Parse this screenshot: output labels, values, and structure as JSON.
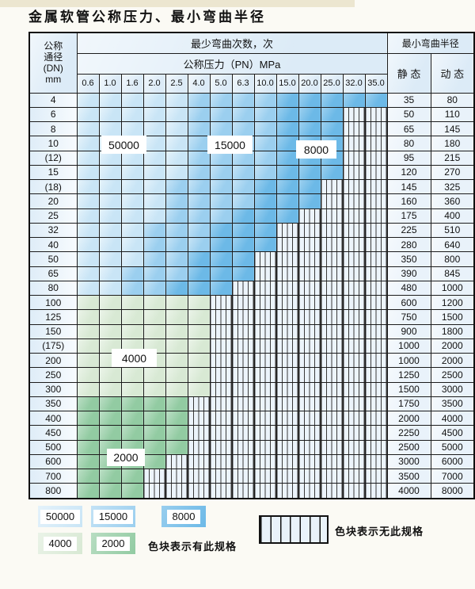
{
  "title": "金属软管公称压力、最小弯曲半径",
  "colors": {
    "zone_50000": "#c9e5f6",
    "zone_15000": "#9bcfef",
    "zone_8000": "#6cb9e7",
    "zone_4000": "#d8e9d4",
    "zone_2000": "#92cba2",
    "hatch_bg": "#ecf4fb",
    "header_bg": "#dcebf7"
  },
  "table": {
    "header": {
      "dn_lines": [
        "公称",
        "通径",
        "(DN)",
        "mm"
      ],
      "bend_cycles": "最少弯曲次数，次",
      "pressure": "公称压力（PN）MPa",
      "min_radius": "最小弯曲半径",
      "static": "静 态",
      "dynamic": "动 态",
      "pressures": [
        "0.6",
        "1.0",
        "1.6",
        "2.0",
        "2.5",
        "4.0",
        "5.0",
        "6.3",
        "10.0",
        "15.0",
        "20.0",
        "25.0",
        "32.0",
        "35.0"
      ]
    },
    "rows": [
      {
        "dn": "4",
        "static": "35",
        "dynamic": "80",
        "cells": [
          "50000",
          "50000",
          "50000",
          "50000",
          "50000",
          "15000",
          "15000",
          "15000",
          "15000",
          "8000",
          "8000",
          "8000",
          "8000",
          "8000"
        ]
      },
      {
        "dn": "6",
        "static": "50",
        "dynamic": "110",
        "cells": [
          "50000",
          "50000",
          "50000",
          "50000",
          "50000",
          "15000",
          "15000",
          "15000",
          "15000",
          "8000",
          "8000",
          "8000",
          "none",
          "none"
        ]
      },
      {
        "dn": "8",
        "static": "65",
        "dynamic": "145",
        "cells": [
          "50000",
          "50000",
          "50000",
          "50000",
          "50000",
          "15000",
          "15000",
          "15000",
          "15000",
          "8000",
          "8000",
          "8000",
          "none",
          "none"
        ]
      },
      {
        "dn": "10",
        "static": "80",
        "dynamic": "180",
        "cells": [
          "50000",
          "50000",
          "50000",
          "50000",
          "50000",
          "15000",
          "15000",
          "15000",
          "15000",
          "8000",
          "8000",
          "8000",
          "none",
          "none"
        ]
      },
      {
        "dn": "(12)",
        "static": "95",
        "dynamic": "215",
        "cells": [
          "50000",
          "50000",
          "50000",
          "50000",
          "50000",
          "15000",
          "15000",
          "15000",
          "15000",
          "8000",
          "8000",
          "8000",
          "none",
          "none"
        ]
      },
      {
        "dn": "15",
        "static": "120",
        "dynamic": "270",
        "cells": [
          "50000",
          "50000",
          "50000",
          "50000",
          "50000",
          "15000",
          "15000",
          "15000",
          "15000",
          "8000",
          "8000",
          "8000",
          "none",
          "none"
        ]
      },
      {
        "dn": "(18)",
        "static": "145",
        "dynamic": "325",
        "cells": [
          "50000",
          "50000",
          "50000",
          "50000",
          "15000",
          "15000",
          "15000",
          "15000",
          "8000",
          "8000",
          "8000",
          "none",
          "none",
          "none"
        ]
      },
      {
        "dn": "20",
        "static": "160",
        "dynamic": "360",
        "cells": [
          "50000",
          "50000",
          "50000",
          "50000",
          "15000",
          "15000",
          "15000",
          "15000",
          "8000",
          "8000",
          "8000",
          "none",
          "none",
          "none"
        ]
      },
      {
        "dn": "25",
        "static": "175",
        "dynamic": "400",
        "cells": [
          "50000",
          "50000",
          "50000",
          "50000",
          "15000",
          "15000",
          "15000",
          "8000",
          "8000",
          "8000",
          "none",
          "none",
          "none",
          "none"
        ]
      },
      {
        "dn": "32",
        "static": "225",
        "dynamic": "510",
        "cells": [
          "50000",
          "50000",
          "50000",
          "15000",
          "15000",
          "15000",
          "8000",
          "8000",
          "8000",
          "none",
          "none",
          "none",
          "none",
          "none"
        ]
      },
      {
        "dn": "40",
        "static": "280",
        "dynamic": "640",
        "cells": [
          "50000",
          "50000",
          "50000",
          "15000",
          "15000",
          "15000",
          "8000",
          "8000",
          "8000",
          "none",
          "none",
          "none",
          "none",
          "none"
        ]
      },
      {
        "dn": "50",
        "static": "350",
        "dynamic": "800",
        "cells": [
          "50000",
          "50000",
          "50000",
          "15000",
          "15000",
          "8000",
          "8000",
          "8000",
          "none",
          "none",
          "none",
          "none",
          "none",
          "none"
        ]
      },
      {
        "dn": "65",
        "static": "390",
        "dynamic": "845",
        "cells": [
          "50000",
          "50000",
          "15000",
          "15000",
          "15000",
          "8000",
          "8000",
          "8000",
          "none",
          "none",
          "none",
          "none",
          "none",
          "none"
        ]
      },
      {
        "dn": "80",
        "static": "480",
        "dynamic": "1000",
        "cells": [
          "50000",
          "50000",
          "15000",
          "15000",
          "8000",
          "8000",
          "8000",
          "none",
          "none",
          "none",
          "none",
          "none",
          "none",
          "none"
        ]
      },
      {
        "dn": "100",
        "static": "600",
        "dynamic": "1200",
        "cells": [
          "4000",
          "4000",
          "4000",
          "4000",
          "4000",
          "4000",
          "none",
          "none",
          "none",
          "none",
          "none",
          "none",
          "none",
          "none"
        ]
      },
      {
        "dn": "125",
        "static": "750",
        "dynamic": "1500",
        "cells": [
          "4000",
          "4000",
          "4000",
          "4000",
          "4000",
          "4000",
          "none",
          "none",
          "none",
          "none",
          "none",
          "none",
          "none",
          "none"
        ]
      },
      {
        "dn": "150",
        "static": "900",
        "dynamic": "1800",
        "cells": [
          "4000",
          "4000",
          "4000",
          "4000",
          "4000",
          "4000",
          "none",
          "none",
          "none",
          "none",
          "none",
          "none",
          "none",
          "none"
        ]
      },
      {
        "dn": "(175)",
        "static": "1000",
        "dynamic": "2000",
        "cells": [
          "4000",
          "4000",
          "4000",
          "4000",
          "4000",
          "4000",
          "none",
          "none",
          "none",
          "none",
          "none",
          "none",
          "none",
          "none"
        ]
      },
      {
        "dn": "200",
        "static": "1000",
        "dynamic": "2000",
        "cells": [
          "4000",
          "4000",
          "4000",
          "4000",
          "4000",
          "4000",
          "none",
          "none",
          "none",
          "none",
          "none",
          "none",
          "none",
          "none"
        ]
      },
      {
        "dn": "250",
        "static": "1250",
        "dynamic": "2500",
        "cells": [
          "4000",
          "4000",
          "4000",
          "4000",
          "4000",
          "4000",
          "none",
          "none",
          "none",
          "none",
          "none",
          "none",
          "none",
          "none"
        ]
      },
      {
        "dn": "300",
        "static": "1500",
        "dynamic": "3000",
        "cells": [
          "4000",
          "4000",
          "4000",
          "4000",
          "4000",
          "4000",
          "none",
          "none",
          "none",
          "none",
          "none",
          "none",
          "none",
          "none"
        ]
      },
      {
        "dn": "350",
        "static": "1750",
        "dynamic": "3500",
        "cells": [
          "2000",
          "2000",
          "2000",
          "2000",
          "2000",
          "none",
          "none",
          "none",
          "none",
          "none",
          "none",
          "none",
          "none",
          "none"
        ]
      },
      {
        "dn": "400",
        "static": "2000",
        "dynamic": "4000",
        "cells": [
          "2000",
          "2000",
          "2000",
          "2000",
          "2000",
          "none",
          "none",
          "none",
          "none",
          "none",
          "none",
          "none",
          "none",
          "none"
        ]
      },
      {
        "dn": "450",
        "static": "2250",
        "dynamic": "4500",
        "cells": [
          "2000",
          "2000",
          "2000",
          "2000",
          "2000",
          "none",
          "none",
          "none",
          "none",
          "none",
          "none",
          "none",
          "none",
          "none"
        ]
      },
      {
        "dn": "500",
        "static": "2500",
        "dynamic": "5000",
        "cells": [
          "2000",
          "2000",
          "2000",
          "2000",
          "2000",
          "none",
          "none",
          "none",
          "none",
          "none",
          "none",
          "none",
          "none",
          "none"
        ]
      },
      {
        "dn": "600",
        "static": "3000",
        "dynamic": "6000",
        "cells": [
          "2000",
          "2000",
          "2000",
          "2000",
          "none",
          "none",
          "none",
          "none",
          "none",
          "none",
          "none",
          "none",
          "none",
          "none"
        ]
      },
      {
        "dn": "700",
        "static": "3500",
        "dynamic": "7000",
        "cells": [
          "2000",
          "2000",
          "2000",
          "none",
          "none",
          "none",
          "none",
          "none",
          "none",
          "none",
          "none",
          "none",
          "none",
          "none"
        ]
      },
      {
        "dn": "800",
        "static": "4000",
        "dynamic": "8000",
        "cells": [
          "2000",
          "2000",
          "2000",
          "none",
          "none",
          "none",
          "none",
          "none",
          "none",
          "none",
          "none",
          "none",
          "none",
          "none"
        ]
      }
    ]
  },
  "overlays": {
    "o50000": "50000",
    "o15000": "15000",
    "o8000": "8000",
    "o4000": "4000",
    "o2000": "2000"
  },
  "legend": {
    "swatches": [
      "50000",
      "15000",
      "8000",
      "4000",
      "2000"
    ],
    "available_label": "色块表示有此规格",
    "unavailable_label": "色块表示无此规格"
  }
}
